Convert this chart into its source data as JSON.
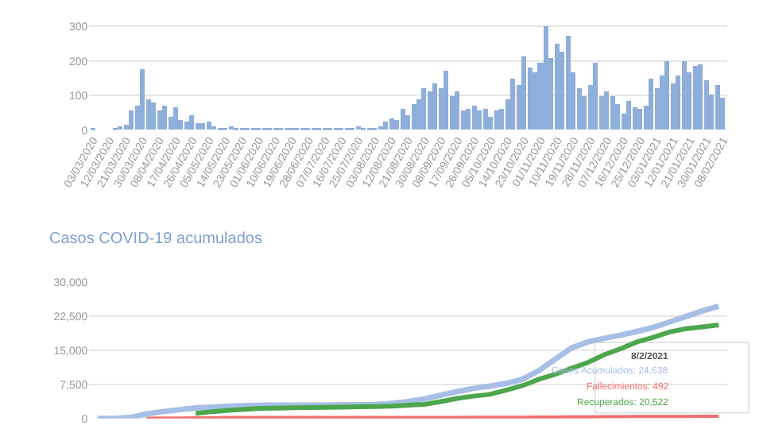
{
  "chart_data": [
    {
      "type": "bar",
      "color": "#8eaedb",
      "grid": "y",
      "legend": false,
      "x": [
        "2020-03-03",
        "2020-03-06",
        "2020-03-09",
        "2020-03-12",
        "2020-03-15",
        "2020-03-18",
        "2020-03-21",
        "2020-03-24",
        "2020-03-27",
        "2020-03-30",
        "2020-04-02",
        "2020-04-05",
        "2020-04-08",
        "2020-04-11",
        "2020-04-14",
        "2020-04-17",
        "2020-04-20",
        "2020-04-23",
        "2020-04-26",
        "2020-04-29",
        "2020-05-02",
        "2020-05-05",
        "2020-05-08",
        "2020-05-11",
        "2020-05-14",
        "2020-05-17",
        "2020-05-20",
        "2020-05-23",
        "2020-05-26",
        "2020-05-29",
        "2020-06-01",
        "2020-06-04",
        "2020-06-07",
        "2020-06-10",
        "2020-06-13",
        "2020-06-16",
        "2020-06-19",
        "2020-06-22",
        "2020-06-25",
        "2020-06-28",
        "2020-07-01",
        "2020-07-04",
        "2020-07-07",
        "2020-07-10",
        "2020-07-13",
        "2020-07-16",
        "2020-07-19",
        "2020-07-22",
        "2020-07-25",
        "2020-07-28",
        "2020-07-31",
        "2020-08-03",
        "2020-08-06",
        "2020-08-09",
        "2020-08-12",
        "2020-08-15",
        "2020-08-18",
        "2020-08-21",
        "2020-08-24",
        "2020-08-27",
        "2020-08-30",
        "2020-09-02",
        "2020-09-05",
        "2020-09-08",
        "2020-09-11",
        "2020-09-14",
        "2020-09-17",
        "2020-09-20",
        "2020-09-23",
        "2020-09-26",
        "2020-09-29",
        "2020-10-02",
        "2020-10-05",
        "2020-10-08",
        "2020-10-11",
        "2020-10-14",
        "2020-10-17",
        "2020-10-20",
        "2020-10-23",
        "2020-10-26",
        "2020-10-29",
        "2020-11-01",
        "2020-11-04",
        "2020-11-07",
        "2020-11-10",
        "2020-11-13",
        "2020-11-16",
        "2020-11-19",
        "2020-11-22",
        "2020-11-25",
        "2020-11-28",
        "2020-12-01",
        "2020-12-04",
        "2020-12-07",
        "2020-12-10",
        "2020-12-13",
        "2020-12-16",
        "2020-12-19",
        "2020-12-22",
        "2020-12-25",
        "2020-12-28",
        "2020-12-31",
        "2021-01-03",
        "2021-01-06",
        "2021-01-09",
        "2021-01-12",
        "2021-01-15",
        "2021-01-18",
        "2021-01-21",
        "2021-01-24",
        "2021-01-27",
        "2021-01-30",
        "2021-02-02",
        "2021-02-05",
        "2021-02-08"
      ],
      "values": [
        5,
        0,
        0,
        0,
        2,
        12,
        15,
        55,
        70,
        178,
        90,
        80,
        55,
        70,
        40,
        65,
        30,
        25,
        45,
        22,
        20,
        25,
        12,
        4,
        2,
        12,
        3,
        2,
        3,
        2,
        2,
        4,
        2,
        2,
        2,
        2,
        2,
        2,
        3,
        2,
        4,
        2,
        2,
        2,
        2,
        2,
        2,
        3,
        10,
        5,
        6,
        8,
        12,
        25,
        35,
        30,
        60,
        45,
        75,
        90,
        120,
        110,
        135,
        120,
        172,
        100,
        113,
        55,
        60,
        70,
        55,
        60,
        40,
        55,
        60,
        90,
        150,
        130,
        213,
        180,
        165,
        195,
        300,
        210,
        250,
        225,
        275,
        165,
        120,
        100,
        130,
        195,
        100,
        110,
        100,
        75,
        47,
        85,
        65,
        62,
        70,
        150,
        120,
        160,
        200,
        135,
        160,
        200,
        165,
        185,
        190,
        143,
        105,
        130,
        95
      ],
      "xlim": [
        "2020-03-01",
        "2021-02-10"
      ],
      "ylim": [
        0,
        310
      ],
      "yticks": [
        0,
        100,
        200,
        300
      ],
      "xticks": [
        {
          "value": "2020-03-03",
          "label": "03/03/2020"
        },
        {
          "value": "2020-03-12",
          "label": "12/03/2020"
        },
        {
          "value": "2020-03-21",
          "label": "21/03/2020"
        },
        {
          "value": "2020-03-30",
          "label": "30/03/2020"
        },
        {
          "value": "2020-04-08",
          "label": "08/04/2020"
        },
        {
          "value": "2020-04-17",
          "label": "17/04/2020"
        },
        {
          "value": "2020-04-26",
          "label": "26/04/2020"
        },
        {
          "value": "2020-05-05",
          "label": "05/05/2020"
        },
        {
          "value": "2020-05-14",
          "label": "14/05/2020"
        },
        {
          "value": "2020-05-23",
          "label": "23/05/2020"
        },
        {
          "value": "2020-06-01",
          "label": "01/06/2020"
        },
        {
          "value": "2020-06-10",
          "label": "10/06/2020"
        },
        {
          "value": "2020-06-19",
          "label": "19/06/2020"
        },
        {
          "value": "2020-06-28",
          "label": "28/06/2020"
        },
        {
          "value": "2020-07-07",
          "label": "07/07/2020"
        },
        {
          "value": "2020-07-16",
          "label": "16/07/2020"
        },
        {
          "value": "2020-07-25",
          "label": "25/07/2020"
        },
        {
          "value": "2020-08-03",
          "label": "03/08/2020"
        },
        {
          "value": "2020-08-12",
          "label": "12/08/2020"
        },
        {
          "value": "2020-08-21",
          "label": "21/08/2020"
        },
        {
          "value": "2020-08-30",
          "label": "30/08/2020"
        },
        {
          "value": "2020-09-08",
          "label": "08/09/2020"
        },
        {
          "value": "2020-09-17",
          "label": "17/09/2020"
        },
        {
          "value": "2020-09-26",
          "label": "26/09/2020"
        },
        {
          "value": "2020-10-05",
          "label": "05/10/2020"
        },
        {
          "value": "2020-10-14",
          "label": "14/10/2020"
        },
        {
          "value": "2020-10-23",
          "label": "23/10/2020"
        },
        {
          "value": "2020-11-01",
          "label": "01/11/2020"
        },
        {
          "value": "2020-11-10",
          "label": "10/11/2020"
        },
        {
          "value": "2020-11-19",
          "label": "19/11/2020"
        },
        {
          "value": "2020-11-28",
          "label": "28/11/2020"
        },
        {
          "value": "2020-12-07",
          "label": "07/12/2020"
        },
        {
          "value": "2020-12-16",
          "label": "16/12/2020"
        },
        {
          "value": "2020-12-25",
          "label": "25/12/2020"
        },
        {
          "value": "2021-01-03",
          "label": "03/01/2021"
        },
        {
          "value": "2021-01-12",
          "label": "12/01/2021"
        },
        {
          "value": "2021-01-21",
          "label": "21/01/2021"
        },
        {
          "value": "2021-01-30",
          "label": "30/01/2021"
        },
        {
          "value": "2021-02-08",
          "label": "08/02/2021"
        }
      ]
    },
    {
      "type": "line",
      "title": "Casos COVID-19 acumulados",
      "grid": "y",
      "legend": false,
      "tick_labels": "y",
      "annotations": [
        "8/2/2021",
        "Casos Acumulados: 24,638",
        "Fallecimientos: 492",
        "Recuperados: 20,522"
      ],
      "categories": [
        null,
        null,
        null,
        null,
        null,
        null,
        null,
        null,
        null,
        null,
        null,
        null,
        null,
        null,
        null,
        null,
        null,
        null,
        null,
        null,
        null,
        null,
        null,
        null,
        null,
        null,
        null,
        null,
        null,
        null,
        null,
        null,
        null,
        null,
        null,
        null,
        null,
        null,
        null
      ],
      "ylim": [
        0,
        30000
      ],
      "yticks": [
        0,
        {
          "value": 7500,
          "label": "7,500"
        },
        {
          "value": 15000,
          "label": "15,000"
        },
        {
          "value": 22500,
          "label": "22,500"
        },
        {
          "value": 30000,
          "label": "30,000"
        }
      ],
      "series": [
        {
          "color": "#a7bfe6",
          "values": [
            0,
            0,
            200,
            1000,
            1500,
            1900,
            2300,
            2500,
            2700,
            2800,
            2900,
            2900,
            2900,
            2900,
            2900,
            3000,
            3000,
            3100,
            3300,
            3700,
            4300,
            5100,
            5900,
            6600,
            7100,
            7700,
            8600,
            10500,
            13000,
            15500,
            16800,
            17600,
            18300,
            19100,
            20000,
            21200,
            22400,
            23600,
            24638
          ]
        },
        {
          "color": "#f36f6f",
          "values": [
            null,
            null,
            null,
            50,
            100,
            100,
            150,
            150,
            200,
            200,
            200,
            200,
            200,
            200,
            200,
            200,
            200,
            200,
            200,
            200,
            200,
            200,
            200,
            250,
            250,
            250,
            250,
            300,
            300,
            350,
            350,
            400,
            400,
            450,
            450,
            450,
            450,
            500,
            492
          ]
        },
        {
          "color": "#4ca64c",
          "values": [
            null,
            null,
            null,
            null,
            null,
            null,
            1100,
            1500,
            1800,
            2000,
            2200,
            2250,
            2350,
            2400,
            2450,
            2500,
            2550,
            2600,
            2700,
            2900,
            3100,
            3700,
            4400,
            4900,
            5300,
            6200,
            7200,
            8600,
            9700,
            11000,
            12300,
            14000,
            15300,
            16800,
            17800,
            19000,
            19700,
            20100,
            20522
          ]
        }
      ]
    }
  ]
}
